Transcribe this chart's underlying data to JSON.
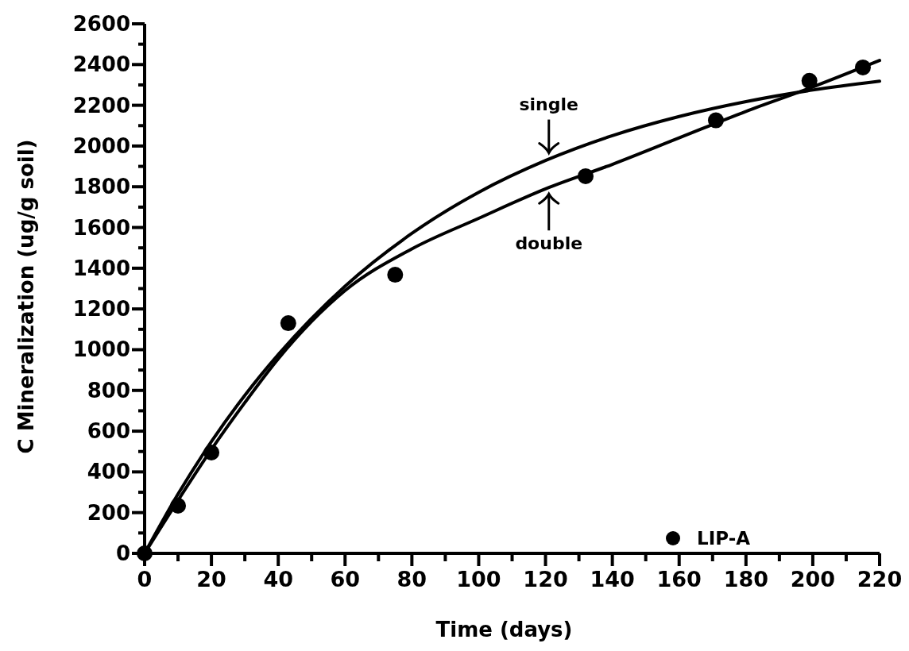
{
  "chart_data": {
    "type": "line",
    "xlabel": "Time (days)",
    "ylabel": "C Mineralization (ug/g soil)",
    "xlim": [
      0,
      220
    ],
    "ylim": [
      0,
      2600
    ],
    "xticks": [
      0,
      {
        "value": 10,
        "label": null
      },
      20,
      {
        "value": 30,
        "label": null
      },
      40,
      {
        "value": 50,
        "label": null
      },
      60,
      {
        "value": 70,
        "label": null
      },
      80,
      {
        "value": 90,
        "label": null
      },
      100,
      {
        "value": 110,
        "label": null
      },
      120,
      {
        "value": 130,
        "label": null
      },
      140,
      {
        "value": 150,
        "label": null
      },
      160,
      {
        "value": 170,
        "label": null
      },
      180,
      {
        "value": 190,
        "label": null
      },
      200,
      {
        "value": 210,
        "label": null
      },
      220
    ],
    "yticks": [
      0,
      {
        "value": 100,
        "label": null
      },
      200,
      {
        "value": 300,
        "label": null
      },
      400,
      {
        "value": 500,
        "label": null
      },
      600,
      {
        "value": 700,
        "label": null
      },
      800,
      {
        "value": 900,
        "label": null
      },
      1000,
      {
        "value": 1100,
        "label": null
      },
      1200,
      {
        "value": 1300,
        "label": null
      },
      1400,
      {
        "value": 1500,
        "label": null
      },
      1600,
      {
        "value": 1700,
        "label": null
      },
      1800,
      {
        "value": 1900,
        "label": null
      },
      2000,
      {
        "value": 2100,
        "label": null
      },
      2200,
      {
        "value": 2300,
        "label": null
      },
      2400,
      {
        "value": 2500,
        "label": null
      },
      2600
    ],
    "legend": "bottom right",
    "grid": false,
    "series": [
      {
        "name": "LIP-A",
        "type": "scatter",
        "marker": "circle",
        "color": "#000000",
        "x": [
          0,
          10,
          20,
          43,
          75,
          132,
          171,
          199,
          215
        ],
        "values": [
          0,
          234,
          495,
          1130,
          1368,
          1852,
          2126,
          2320,
          2386
        ]
      },
      {
        "color": "#000000",
        "line_style": "solid",
        "x": [
          0,
          10,
          20,
          30,
          40,
          60,
          80,
          100,
          120,
          140,
          160,
          180,
          200,
          220
        ],
        "values": [
          0,
          291,
          549,
          776,
          976,
          1312,
          1571,
          1773,
          1929,
          2051,
          2145,
          2218,
          2275,
          2318
        ]
      },
      {
        "color": "#000000",
        "line_style": "solid",
        "x": [
          0,
          10,
          20,
          30,
          40,
          60,
          80,
          100,
          120,
          140,
          160,
          180,
          200,
          220
        ],
        "values": [
          0,
          260,
          510,
          740,
          955,
          1290,
          1495,
          1645,
          1790,
          1910,
          2040,
          2170,
          2290,
          2420
        ]
      }
    ],
    "annotations": [
      "single",
      "double"
    ]
  }
}
